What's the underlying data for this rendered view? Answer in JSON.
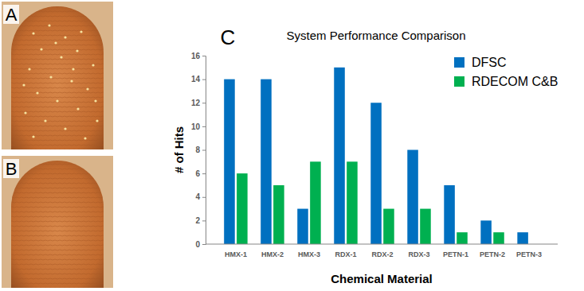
{
  "panel_labels": [
    "A",
    "B",
    "C"
  ],
  "chart_data": {
    "type": "bar",
    "title": "System Performance Comparison",
    "x_label": "Chemical Material",
    "y_label": "# of Hits",
    "categories": [
      "HMX-1",
      "HMX-2",
      "HMX-3",
      "RDX-1",
      "RDX-2",
      "RDX-3",
      "PETN-1",
      "PETN-2",
      "PETN-3"
    ],
    "series": [
      {
        "name": "DFSC",
        "color": "#0070c0",
        "values": [
          14,
          14,
          3,
          15,
          12,
          8,
          5,
          2,
          1
        ]
      },
      {
        "name": "RDECOM C&B",
        "color": "#00b050",
        "values": [
          6,
          5,
          7,
          7,
          3,
          3,
          1,
          1,
          0
        ]
      }
    ],
    "ylim": [
      0,
      16
    ],
    "yticks": [
      0,
      2,
      4,
      6,
      8,
      10,
      12,
      14,
      16
    ],
    "grid": false,
    "legend": "top-right"
  }
}
